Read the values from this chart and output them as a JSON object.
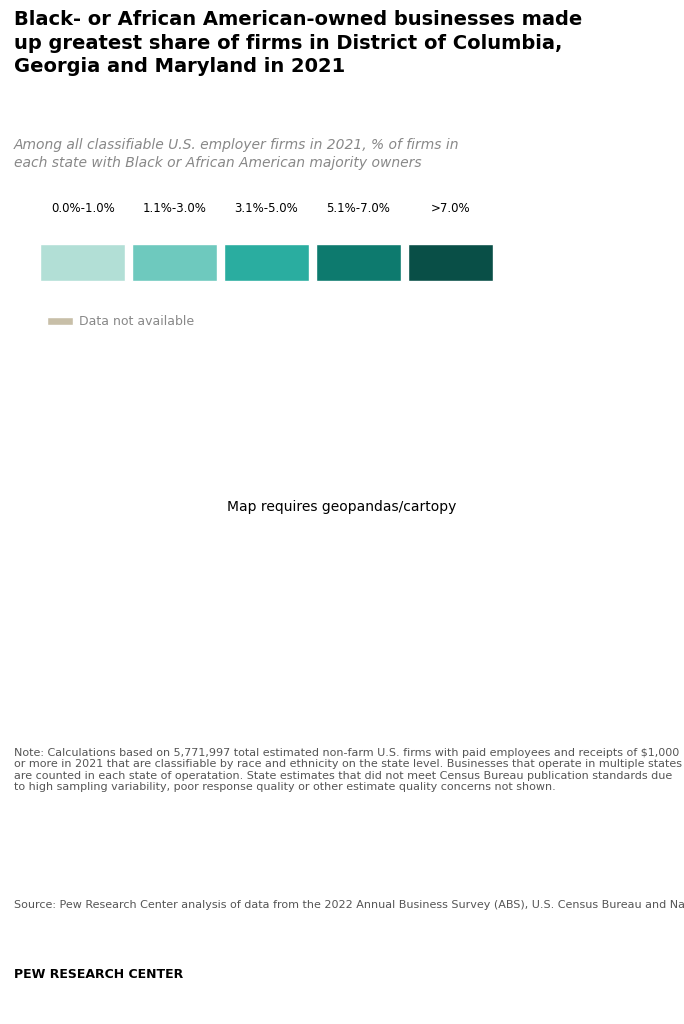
{
  "title": "Black- or African American-owned businesses made up greatest share of firms in District of Columbia, Georgia and Maryland in 2021",
  "subtitle": "Among all classifiable U.S. employer firms in 2021, % of firms in\neach state with Black or African American majority owners",
  "note": "Note: Calculations based on 5,771,997 total estimated non-farm U.S. firms with paid employees and receipts of $1,000 or more in 2021 that are classifiable by race and ethnicity on the state level. Businesses that operate in multiple states are counted in each state of operatation. State estimates that did not meet Census Bureau publication standards due to high sampling variability, poor response quality or other estimate quality concerns not shown.",
  "source": "Source: Pew Research Center analysis of data from the 2022 Annual Business Survey (ABS), U.S. Census Bureau and National Science Foundation.",
  "branding": "PEW RESEARCH CENTER",
  "legend_labels": [
    "0.0%-1.0%",
    "1.1%-3.0%",
    "3.1%-5.0%",
    "5.1%-7.0%",
    ">7.0%"
  ],
  "legend_colors": [
    "#b2dfd6",
    "#6ec9be",
    "#2aada0",
    "#0d7a6e",
    "#094f47"
  ],
  "na_color": "#c8bfa8",
  "background_color": "#ffffff",
  "state_colors": {
    "AL": "#2aada0",
    "AK": "#6ec9be",
    "AZ": "#6ec9be",
    "AR": "#6ec9be",
    "CA": "#6ec9be",
    "CO": "#6ec9be",
    "CT": "#6ec9be",
    "DE": "#6ec9be",
    "FL": "#2aada0",
    "GA": "#094f47",
    "HI": "#6ec9be",
    "ID": "#b2dfd6",
    "IL": "#2aada0",
    "IN": "#6ec9be",
    "IA": "#b2dfd6",
    "KS": "#6ec9be",
    "KY": "#6ec9be",
    "LA": "#2aada0",
    "ME": "#b2dfd6",
    "MD": "#0d7a6e",
    "MA": "#2aada0",
    "MI": "#6ec9be",
    "MN": "#6ec9be",
    "MS": "#0d7a6e",
    "MO": "#2aada0",
    "MT": "#b2dfd6",
    "NE": "#c8bfa8",
    "NV": "#6ec9be",
    "NH": "#b2dfd6",
    "NJ": "#2aada0",
    "NM": "#6ec9be",
    "NY": "#2aada0",
    "NC": "#2aada0",
    "ND": "#c8bfa8",
    "OH": "#6ec9be",
    "OK": "#6ec9be",
    "OR": "#b2dfd6",
    "PA": "#2aada0",
    "RI": "#6ec9be",
    "SC": "#2aada0",
    "SD": "#b2dfd6",
    "TN": "#6ec9be",
    "TX": "#6ec9be",
    "UT": "#b2dfd6",
    "VT": "#b2dfd6",
    "VA": "#2aada0",
    "WA": "#b2dfd6",
    "WV": "#b2dfd6",
    "WI": "#b2dfd6",
    "WY": "#b2dfd6",
    "DC": "#094f47"
  }
}
